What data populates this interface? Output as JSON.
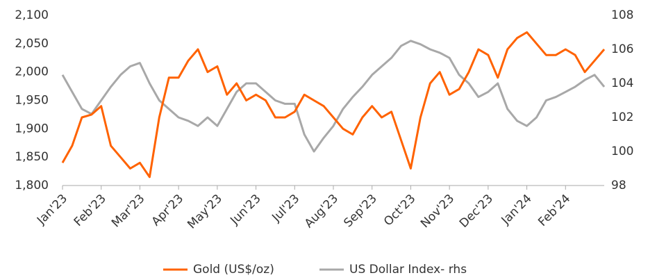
{
  "chart_data": {
    "type": "line",
    "categories": [
      "Jan'23",
      null,
      null,
      null,
      "Feb'23",
      null,
      null,
      null,
      "Mar'23",
      null,
      null,
      null,
      "Apr'23",
      null,
      null,
      null,
      "May'23",
      null,
      null,
      null,
      "Jun'23",
      null,
      null,
      null,
      "Jul'23",
      null,
      null,
      null,
      "Aug'23",
      null,
      null,
      null,
      "Sep'23",
      null,
      null,
      null,
      "Oct'23",
      null,
      null,
      null,
      "Nov'23",
      null,
      null,
      null,
      "Dec'23",
      null,
      null,
      null,
      "Jan'24",
      null,
      null,
      null,
      "Feb'24",
      null,
      null,
      null,
      null
    ],
    "series": [
      {
        "name": "Gold (US$/oz)",
        "color": "#ff6200",
        "values": [
          1840,
          1870,
          1920,
          1925,
          1940,
          1870,
          1850,
          1830,
          1840,
          1815,
          1920,
          1990,
          1990,
          2020,
          2040,
          2000,
          2010,
          1960,
          1980,
          1950,
          1960,
          1950,
          1920,
          1920,
          1930,
          1960,
          1950,
          1940,
          1920,
          1900,
          1890,
          1920,
          1940,
          1920,
          1930,
          1880,
          1830,
          1920,
          1980,
          2000,
          1960,
          1970,
          2000,
          2040,
          2030,
          1990,
          2040,
          2060,
          2070,
          2050,
          2030,
          2030,
          2040,
          2030,
          2000,
          2020,
          2040
        ]
      },
      {
        "name": "US Dollar Index- rhs",
        "color": "#a8a8a8",
        "axis": "y2",
        "values": [
          104.5,
          103.5,
          102.5,
          102.2,
          103.0,
          103.8,
          104.5,
          105.0,
          105.2,
          104.0,
          103.0,
          102.5,
          102.0,
          101.8,
          101.5,
          102.0,
          101.5,
          102.5,
          103.5,
          104.0,
          104.0,
          103.5,
          103.0,
          102.8,
          102.8,
          101.0,
          100.0,
          100.8,
          101.5,
          102.5,
          103.2,
          103.8,
          104.5,
          105.0,
          105.5,
          106.2,
          106.5,
          106.3,
          106.0,
          105.8,
          105.5,
          104.5,
          104.0,
          103.2,
          103.5,
          104.0,
          102.5,
          101.8,
          101.5,
          102.0,
          103.0,
          103.2,
          103.5,
          103.8,
          104.2,
          104.5,
          103.8
        ]
      }
    ],
    "ylim": [
      1800,
      2100
    ],
    "yticks": [
      {
        "value": 1800,
        "label": "1,800"
      },
      {
        "value": 1850,
        "label": "1,850"
      },
      {
        "value": 1900,
        "label": "1,900"
      },
      {
        "value": 1950,
        "label": "1,950"
      },
      {
        "value": 2000,
        "label": "2,000"
      },
      {
        "value": 2050,
        "label": "2,050"
      },
      {
        "value": 2100,
        "label": "2,100"
      }
    ],
    "y2lim": [
      98,
      108
    ],
    "y2ticks": [
      98,
      100,
      102,
      104,
      106,
      108
    ],
    "legend": "bottom"
  }
}
